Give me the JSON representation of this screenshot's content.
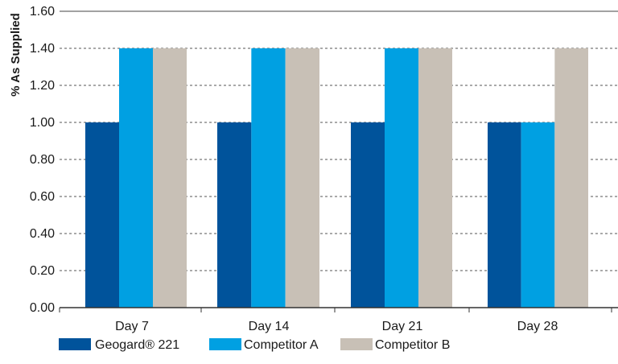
{
  "chart_data": {
    "type": "bar",
    "categories": [
      "Day 7",
      "Day 14",
      "Day 21",
      "Day 28"
    ],
    "series": [
      {
        "name": "Geogard® 221",
        "values": [
          1.0,
          1.0,
          1.0,
          1.0
        ],
        "color": "#00539b"
      },
      {
        "name": "Competitor A",
        "values": [
          1.4,
          1.4,
          1.4,
          1.0
        ],
        "color": "#00a0e2"
      },
      {
        "name": "Competitor B",
        "values": [
          1.4,
          1.4,
          1.4,
          1.4
        ],
        "color": "#c8c0b6"
      }
    ],
    "ylabel": "% As Supplied",
    "xlabel": "",
    "ylim": [
      0,
      1.6
    ],
    "yticks": [
      "0.00",
      "0.20",
      "0.40",
      "0.60",
      "0.80",
      "1.00",
      "1.20",
      "1.40",
      "1.60"
    ],
    "grid": "dashed horizontal",
    "legend_position": "bottom"
  }
}
